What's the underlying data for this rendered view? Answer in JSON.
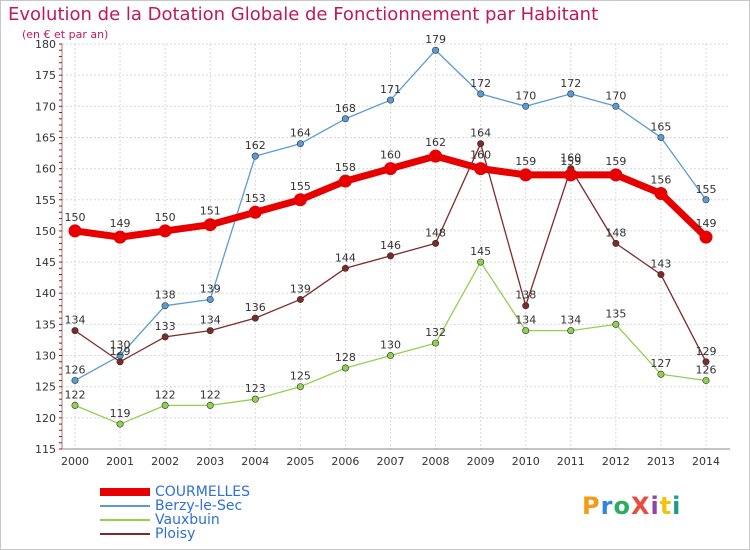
{
  "title": "Evolution de la Dotation Globale de Fonctionnement par Habitant",
  "subtitle": "(en € et par an)",
  "logo": "ProXiti",
  "chart_data": {
    "type": "line",
    "x": [
      "2000",
      "2001",
      "2002",
      "2003",
      "2004",
      "2005",
      "2006",
      "2007",
      "2008",
      "2009",
      "2010",
      "2011",
      "2012",
      "2013",
      "2014"
    ],
    "ylim": [
      115,
      180
    ],
    "yticks": [
      115,
      120,
      125,
      130,
      135,
      140,
      145,
      150,
      155,
      160,
      165,
      170,
      175,
      180
    ],
    "grid": true,
    "legend_position": "bottom-left",
    "series": [
      {
        "name": "Berzy-le-Sec",
        "color": "#5b9bd5",
        "values": [
          126,
          130,
          138,
          139,
          162,
          164,
          168,
          171,
          179,
          172,
          170,
          172,
          170,
          165,
          155
        ]
      },
      {
        "name": "Vauxbuin",
        "color": "#92d050",
        "values": [
          122,
          119,
          122,
          122,
          123,
          125,
          128,
          130,
          132,
          145,
          134,
          134,
          135,
          127,
          126
        ]
      },
      {
        "name": "Ploisy",
        "color": "#7f2a2a",
        "values": [
          134,
          129,
          133,
          134,
          136,
          139,
          144,
          146,
          148,
          164,
          138,
          160,
          148,
          143,
          129
        ]
      },
      {
        "name": "COURMELLES",
        "color": "#e60000",
        "bold": true,
        "values": [
          150,
          149,
          150,
          151,
          153,
          155,
          158,
          160,
          162,
          160,
          159,
          159,
          159,
          156,
          149
        ]
      }
    ]
  }
}
